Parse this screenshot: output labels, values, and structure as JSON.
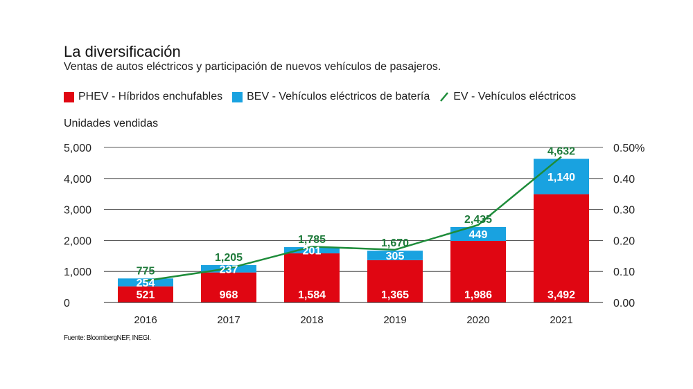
{
  "header": {
    "title": "La diversificación",
    "subtitle": "Ventas de autos eléctricos y participación de nuevos vehículos de pasajeros."
  },
  "legend": {
    "phev": "PHEV - Híbridos enchufables",
    "bev": "BEV - Vehículos eléctricos de batería",
    "ev": "EV - Vehículos eléctricos"
  },
  "axis_title": "Unidades vendidas",
  "source": "Fuente: BloombergNEF, INEGI.",
  "colors": {
    "phev": "#e00612",
    "bev": "#19a2e0",
    "ev_line": "#1e8c3a",
    "label_green": "#1e7a3a"
  },
  "chart_data": {
    "type": "bar",
    "stacked": true,
    "categories": [
      "2016",
      "2017",
      "2018",
      "2019",
      "2020",
      "2021"
    ],
    "series": [
      {
        "name": "PHEV - Híbridos enchufables",
        "values": [
          521,
          968,
          1584,
          1365,
          1986,
          3492
        ],
        "labels": [
          "521",
          "968",
          "1,584",
          "1,365",
          "1,986",
          "3,492"
        ]
      },
      {
        "name": "BEV - Vehículos eléctricos de batería",
        "values": [
          254,
          237,
          201,
          305,
          449,
          1140
        ],
        "labels": [
          "254",
          "237",
          "201",
          "305",
          "449",
          "1,140"
        ]
      }
    ],
    "totals": {
      "values": [
        775,
        1205,
        1785,
        1670,
        2435,
        4632
      ],
      "labels": [
        "775",
        "1,205",
        "1,785",
        "1,670",
        "2,435",
        "4,632"
      ]
    },
    "line": {
      "name": "EV - Vehículos eléctricos",
      "axis": "right",
      "values": [
        0.07,
        0.11,
        0.18,
        0.17,
        0.25,
        0.47
      ]
    },
    "left_axis": {
      "ylim": [
        0,
        5000
      ],
      "ticks": [
        0,
        1000,
        2000,
        3000,
        4000,
        5000
      ],
      "tick_labels": [
        "0",
        "1,000",
        "2,000",
        "3,000",
        "4,000",
        "5,000"
      ]
    },
    "right_axis": {
      "ylim": [
        0,
        0.5
      ],
      "ticks": [
        0,
        0.1,
        0.2,
        0.3,
        0.4,
        0.5
      ],
      "tick_labels": [
        "0.00",
        "0.10",
        "0.20",
        "0.30",
        "0.40",
        "0.50%"
      ]
    },
    "ylabel": "Unidades vendidas",
    "grid": true
  }
}
